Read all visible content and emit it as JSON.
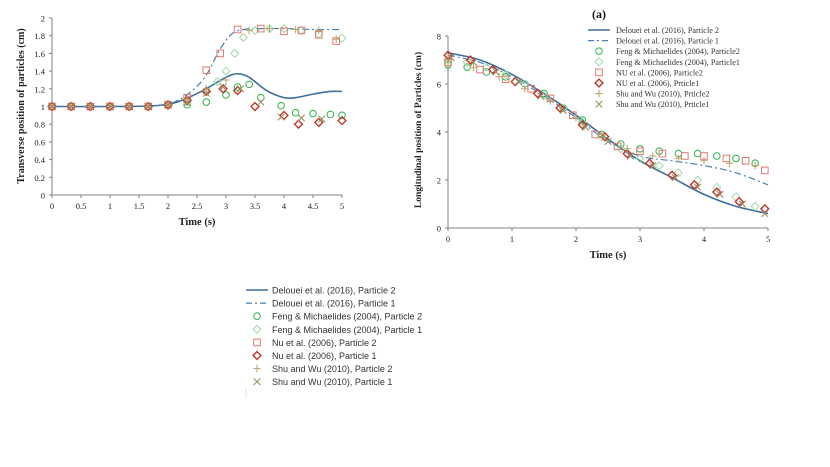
{
  "chart_data": [
    {
      "id": "left",
      "type": "scatter",
      "panel_label": "",
      "title": "",
      "xlabel": "Time (s)",
      "ylabel": "Transverse  position of particles (cm)",
      "xlim": [
        0,
        5
      ],
      "ylim": [
        0,
        2
      ],
      "xticks": [
        "0",
        "0.5",
        "1",
        "1.5",
        "2",
        "2.5",
        "3",
        "3.5",
        "4",
        "4.5",
        "5"
      ],
      "xtick_values": [
        0,
        0.5,
        1,
        1.5,
        2,
        2.5,
        3,
        3.5,
        4,
        4.5,
        5
      ],
      "yticks": [
        "0",
        "0.2",
        "0.4",
        "0.6",
        "0.8",
        "1",
        "1.2",
        "1.4",
        "1.6",
        "1.8",
        "2"
      ],
      "ytick_values": [
        0,
        0.2,
        0.4,
        0.6,
        0.8,
        1,
        1.2,
        1.4,
        1.6,
        1.8,
        2
      ],
      "series": [
        {
          "key": "del2",
          "name": "Delouei et al. (2016), Particle 2",
          "style": "solid",
          "x": [
            0,
            1,
            1.8,
            2.2,
            2.6,
            3.0,
            3.2,
            3.4,
            3.7,
            4.0,
            4.2,
            4.5,
            4.8,
            5.0
          ],
          "y": [
            1.0,
            1.0,
            1.01,
            1.06,
            1.18,
            1.33,
            1.37,
            1.33,
            1.18,
            1.1,
            1.1,
            1.14,
            1.17,
            1.17
          ]
        },
        {
          "key": "del1",
          "name": "Delouei et al. (2016), Particle 1",
          "style": "dashdot",
          "x": [
            0,
            1,
            1.8,
            2.2,
            2.6,
            2.9,
            3.1,
            3.3,
            3.6,
            4.0,
            4.5,
            5.0
          ],
          "y": [
            1.0,
            1.0,
            1.01,
            1.08,
            1.3,
            1.65,
            1.82,
            1.87,
            1.88,
            1.88,
            1.87,
            1.87
          ]
        },
        {
          "key": "feng2",
          "name": "Feng & Michaelides (2004), Particle 2",
          "style": "circle",
          "x": [
            0,
            0.33,
            0.66,
            1.0,
            1.33,
            1.66,
            2.0,
            2.33,
            2.66,
            3.0,
            3.2,
            3.4,
            3.6,
            3.95,
            4.2,
            4.5,
            4.8,
            5.0
          ],
          "y": [
            1.0,
            1.0,
            1.0,
            1.0,
            1.0,
            1.0,
            1.01,
            1.02,
            1.05,
            1.13,
            1.22,
            1.25,
            1.1,
            1.01,
            0.93,
            0.92,
            0.91,
            0.9
          ]
        },
        {
          "key": "feng1",
          "name": "Feng & Michaelides (2004), Particle 1",
          "style": "diamond-outline",
          "x": [
            0,
            0.33,
            0.66,
            1.0,
            1.33,
            1.66,
            2.0,
            2.33,
            2.66,
            2.85,
            3.0,
            3.15,
            3.3,
            3.5,
            3.75,
            4.0,
            4.3,
            4.6,
            5.0
          ],
          "y": [
            1.0,
            1.0,
            1.0,
            1.0,
            1.0,
            1.0,
            1.01,
            1.05,
            1.18,
            1.28,
            1.4,
            1.6,
            1.78,
            1.86,
            1.88,
            1.88,
            1.86,
            1.82,
            1.77
          ]
        },
        {
          "key": "nu2",
          "name": "Nu et al. (2006), Particle 2",
          "style": "square",
          "x": [
            0,
            0.33,
            0.66,
            1.0,
            1.33,
            1.66,
            2.0,
            2.33,
            2.66,
            2.9,
            3.2,
            3.6,
            4.0,
            4.3,
            4.6,
            4.9
          ],
          "y": [
            1.0,
            1.0,
            1.0,
            1.0,
            1.0,
            1.0,
            1.02,
            1.1,
            1.41,
            1.6,
            1.87,
            1.88,
            1.85,
            1.86,
            1.81,
            1.74
          ]
        },
        {
          "key": "nu1",
          "name": "Nu et al. (2006), Particle 1",
          "style": "diamond",
          "x": [
            0,
            0.33,
            0.66,
            1.0,
            1.33,
            1.66,
            2.0,
            2.33,
            2.66,
            2.95,
            3.2,
            3.5,
            4.0,
            4.25,
            4.6,
            5.0
          ],
          "y": [
            1.0,
            1.0,
            1.0,
            1.0,
            1.0,
            1.0,
            1.02,
            1.07,
            1.17,
            1.2,
            1.18,
            1.0,
            0.9,
            0.8,
            0.82,
            0.84
          ]
        },
        {
          "key": "shu2",
          "name": "Shu and Wu (2010), Particle 2",
          "style": "plus",
          "x": [
            0,
            0.33,
            0.66,
            1.0,
            1.33,
            1.66,
            2.0,
            2.33,
            2.66,
            3.0,
            3.4,
            3.75,
            4.2,
            4.6,
            4.9
          ],
          "y": [
            1.0,
            1.0,
            1.0,
            1.0,
            1.0,
            1.0,
            1.02,
            1.08,
            1.2,
            1.3,
            1.86,
            1.88,
            1.87,
            1.86,
            1.76
          ]
        },
        {
          "key": "shu1",
          "name": "Shu and Wu (2010), Particle 1",
          "style": "cross",
          "x": [
            0,
            0.33,
            0.66,
            1.0,
            1.33,
            1.66,
            2.0,
            2.33,
            2.66,
            2.95,
            3.25,
            3.6,
            3.95,
            4.3,
            4.65
          ],
          "y": [
            1.0,
            1.0,
            1.0,
            1.0,
            1.0,
            1.0,
            1.02,
            1.04,
            1.15,
            1.22,
            1.2,
            1.05,
            0.88,
            0.87,
            0.86
          ]
        }
      ]
    },
    {
      "id": "right",
      "type": "scatter",
      "panel_label": "(a)",
      "title": "",
      "xlabel": "Time (s)",
      "ylabel": "Longitudinal position of Particles (cm)",
      "xlim": [
        0,
        5
      ],
      "ylim": [
        0,
        8
      ],
      "xticks": [
        "0",
        "1",
        "2",
        "3",
        "4",
        "5"
      ],
      "xtick_values": [
        0,
        1,
        2,
        3,
        4,
        5
      ],
      "yticks": [
        "0",
        "2",
        "4",
        "6",
        "8"
      ],
      "ytick_values": [
        0,
        2,
        4,
        6,
        8
      ],
      "series": [
        {
          "key": "del2",
          "name": "Delouei et al. (2016), Particle 2",
          "style": "solid",
          "x": [
            0,
            0.5,
            1.0,
            1.5,
            2.0,
            2.5,
            3.0,
            3.5,
            4.0,
            4.5,
            5.0
          ],
          "y": [
            7.3,
            7.0,
            6.4,
            5.6,
            4.7,
            3.7,
            2.8,
            2.1,
            1.4,
            0.9,
            0.6
          ]
        },
        {
          "key": "del1",
          "name": "Delouei et al. (2016), Particle 1",
          "style": "dashdot",
          "x": [
            0,
            0.5,
            1.0,
            1.5,
            2.0,
            2.5,
            3.0,
            3.5,
            4.0,
            4.5,
            5.0
          ],
          "y": [
            7.2,
            6.9,
            6.3,
            5.5,
            4.6,
            3.6,
            3.0,
            2.8,
            2.6,
            2.3,
            1.8
          ]
        },
        {
          "key": "feng2",
          "name": "Feng & Michaelides (2004), Particle2",
          "style": "circle",
          "x": [
            0,
            0.3,
            0.6,
            0.9,
            1.2,
            1.5,
            1.8,
            2.1,
            2.4,
            2.7,
            3.0,
            3.3,
            3.6,
            3.9,
            4.2,
            4.5,
            4.8
          ],
          "y": [
            6.8,
            6.7,
            6.5,
            6.3,
            6.0,
            5.6,
            5.0,
            4.5,
            3.9,
            3.5,
            3.3,
            3.2,
            3.1,
            3.1,
            3.0,
            2.9,
            2.7
          ]
        },
        {
          "key": "feng1",
          "name": "Feng & Michaelides (2004), Particle1",
          "style": "diamond-outline",
          "x": [
            0,
            0.3,
            0.6,
            0.9,
            1.2,
            1.5,
            1.8,
            2.1,
            2.4,
            2.7,
            3.0,
            3.3,
            3.6,
            3.9,
            4.2,
            4.5,
            4.8
          ],
          "y": [
            7.0,
            6.9,
            6.7,
            6.4,
            6.0,
            5.5,
            5.0,
            4.4,
            3.8,
            3.3,
            2.9,
            2.6,
            2.3,
            2.0,
            1.7,
            1.3,
            0.9
          ]
        },
        {
          "key": "nu2",
          "name": "NU et al. (2006), Particle2",
          "style": "square",
          "x": [
            0,
            0.5,
            0.9,
            1.3,
            1.6,
            1.95,
            2.3,
            2.65,
            3.0,
            3.35,
            3.7,
            4.0,
            4.35,
            4.65,
            4.95
          ],
          "y": [
            6.9,
            6.6,
            6.2,
            5.8,
            5.4,
            4.7,
            3.9,
            3.4,
            3.2,
            3.1,
            3.0,
            3.0,
            2.9,
            2.8,
            2.4
          ]
        },
        {
          "key": "nu1",
          "name": "NU et al. (2006), Prticle1",
          "style": "diamond",
          "x": [
            0,
            0.35,
            0.7,
            1.05,
            1.4,
            1.75,
            2.1,
            2.45,
            2.8,
            3.15,
            3.5,
            3.85,
            4.2,
            4.55,
            4.95
          ],
          "y": [
            7.2,
            7.0,
            6.6,
            6.1,
            5.6,
            5.0,
            4.3,
            3.8,
            3.1,
            2.7,
            2.2,
            1.8,
            1.5,
            1.1,
            0.8
          ]
        },
        {
          "key": "shu2",
          "name": "Shu and Wu (2010), Prticle2",
          "style": "plus",
          "x": [
            0,
            0.4,
            0.8,
            1.2,
            1.6,
            2.0,
            2.4,
            2.8,
            3.2,
            3.6,
            4.0,
            4.4,
            4.8
          ],
          "y": [
            7.0,
            6.7,
            6.3,
            5.8,
            5.3,
            4.6,
            3.9,
            3.3,
            3.0,
            2.9,
            2.8,
            2.7,
            2.6
          ]
        },
        {
          "key": "shu1",
          "name": "Shu and Wu (2010), Prticle1",
          "style": "cross",
          "x": [
            0.05,
            0.4,
            0.75,
            1.1,
            1.45,
            1.8,
            2.15,
            2.5,
            2.85,
            3.2,
            3.55,
            3.9,
            4.25,
            4.6,
            4.95
          ],
          "y": [
            7.1,
            6.9,
            6.5,
            6.1,
            5.5,
            4.9,
            4.2,
            3.6,
            3.0,
            2.6,
            2.1,
            1.7,
            1.4,
            1.0,
            0.6
          ]
        }
      ]
    }
  ],
  "colors": {
    "del2": "#3d6f9e",
    "del1": "#4a7fb0",
    "feng2": "#2bb34a",
    "feng1": "#9fd9a5",
    "nu2": "#e07b6f",
    "nu1": "#c0392b",
    "shu2": "#b9a36a",
    "shu1": "#9e8f66",
    "axis": "#7f7f7f",
    "text": "#222222"
  }
}
